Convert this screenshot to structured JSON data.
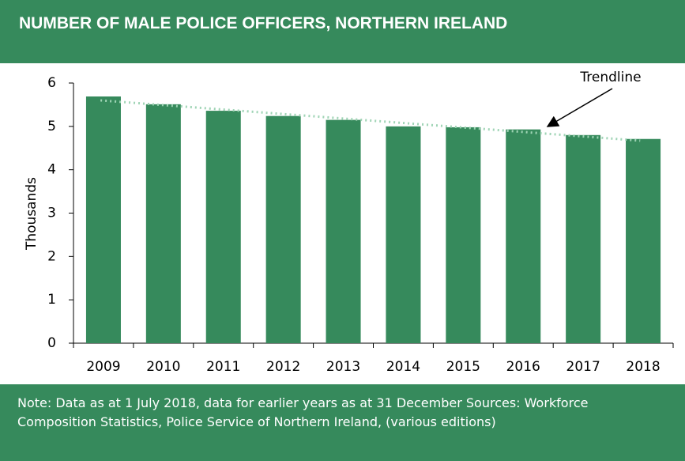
{
  "chart_data": {
    "type": "bar",
    "title": "NUMBER OF MALE POLICE OFFICERS, NORTHERN IRELAND",
    "y_label": "Thousands",
    "categories": [
      "2009",
      "2010",
      "2011",
      "2012",
      "2013",
      "2014",
      "2015",
      "2016",
      "2017",
      "2018"
    ],
    "values": [
      5.69,
      5.51,
      5.36,
      5.24,
      5.15,
      5.0,
      4.98,
      4.93,
      4.8,
      4.71
    ],
    "color": "#368a5c",
    "ylim": [
      0,
      6
    ],
    "yticks": [
      0,
      1,
      2,
      3,
      4,
      5,
      6
    ],
    "trendline": {
      "label": "Trendline",
      "start": 5.6,
      "end": 4.67,
      "color": "#9fd4b5"
    },
    "note": "Note: Data as at 1 July 2018, data for earlier years as at 31 December Sources: Workforce Composition Statistics, Police Service of Northern Ireland, (various editions)"
  }
}
